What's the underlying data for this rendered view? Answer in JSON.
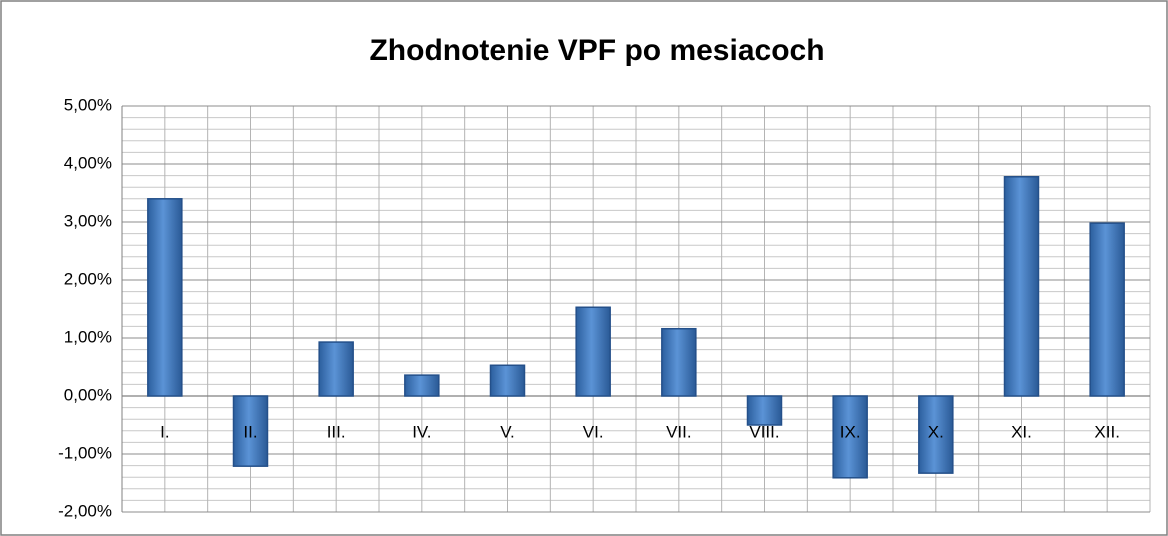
{
  "chart_data": {
    "type": "bar",
    "title": "Zhodnotenie VPF po mesiacoch",
    "categories": [
      "I.",
      "II.",
      "III.",
      "IV.",
      "V.",
      "VI.",
      "VII.",
      "VIII.",
      "IX.",
      "X.",
      "XI.",
      "XII."
    ],
    "values": [
      3.4,
      -1.21,
      0.93,
      0.36,
      0.53,
      1.53,
      1.16,
      -0.5,
      -1.41,
      -1.33,
      3.78,
      2.98
    ],
    "color": "#3f78c0",
    "ylim": [
      -2,
      5
    ],
    "yticks": [
      {
        "value": 5,
        "label": "5,00%"
      },
      {
        "value": 4,
        "label": "4,00%"
      },
      {
        "value": 3,
        "label": "3,00%"
      },
      {
        "value": 2,
        "label": "2,00%"
      },
      {
        "value": 1,
        "label": "1,00%"
      },
      {
        "value": 0,
        "label": "0,00%"
      },
      {
        "value": -1,
        "label": "-1,00%"
      },
      {
        "value": -2,
        "label": "-2,00%"
      }
    ],
    "grid": true
  }
}
